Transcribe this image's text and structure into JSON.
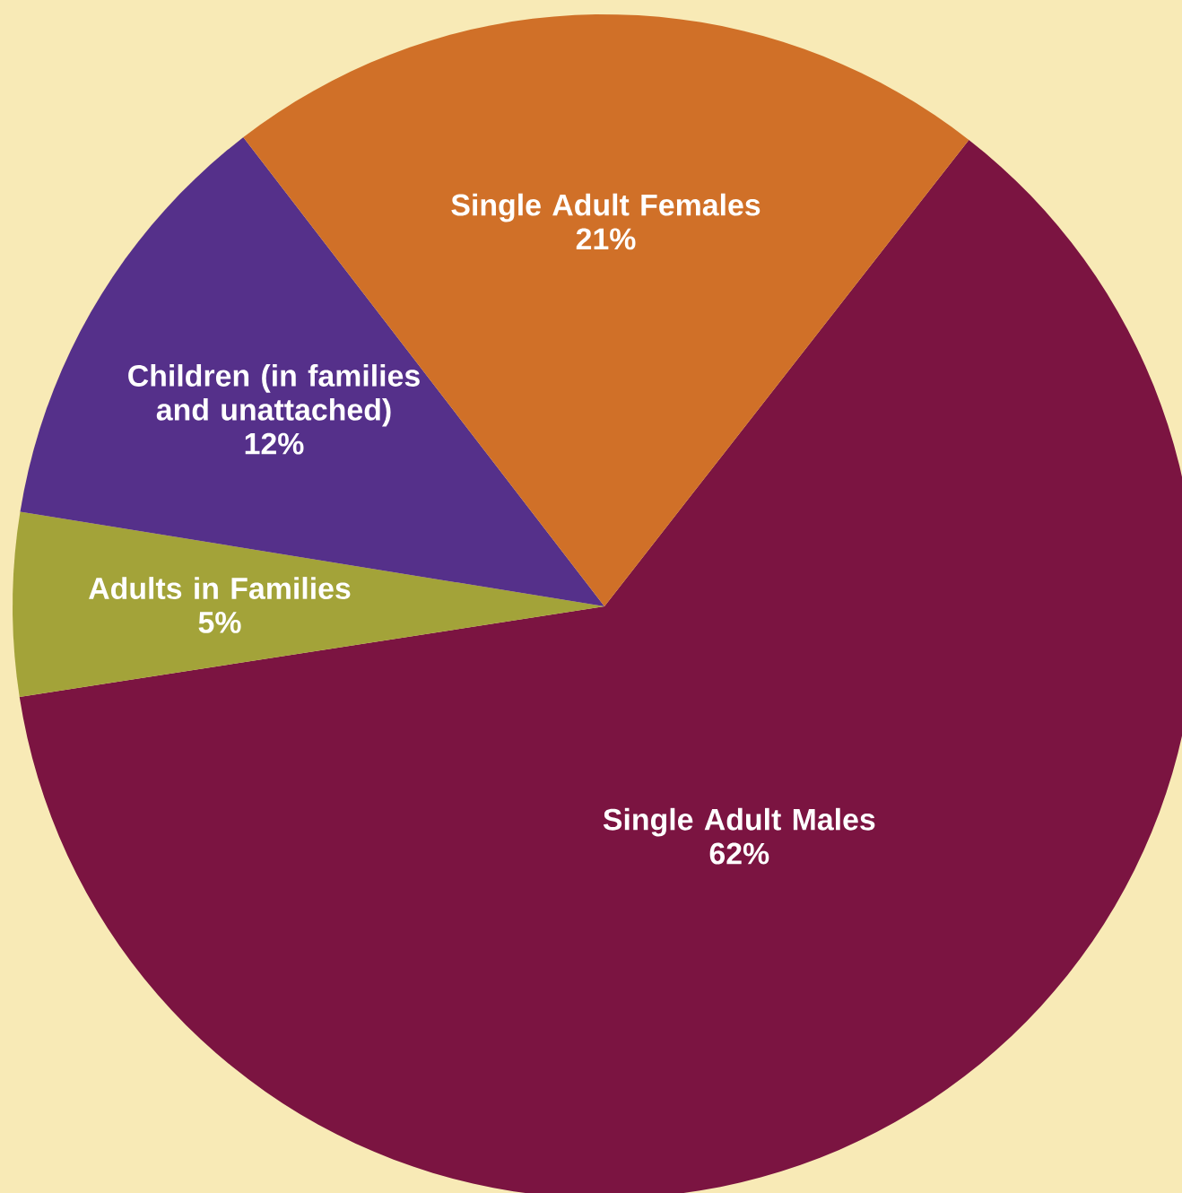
{
  "chart_data": {
    "type": "pie",
    "categories": [
      "Single Adult Males",
      "Adults in Families",
      "Children (in families and unattached)",
      "Single Adult Females"
    ],
    "values": [
      62,
      5,
      12,
      21
    ],
    "colors": [
      "#7b1441",
      "#a3a339",
      "#55308a",
      "#d07028"
    ],
    "value_labels": [
      "62%",
      "5%",
      "12%",
      "21%"
    ]
  }
}
